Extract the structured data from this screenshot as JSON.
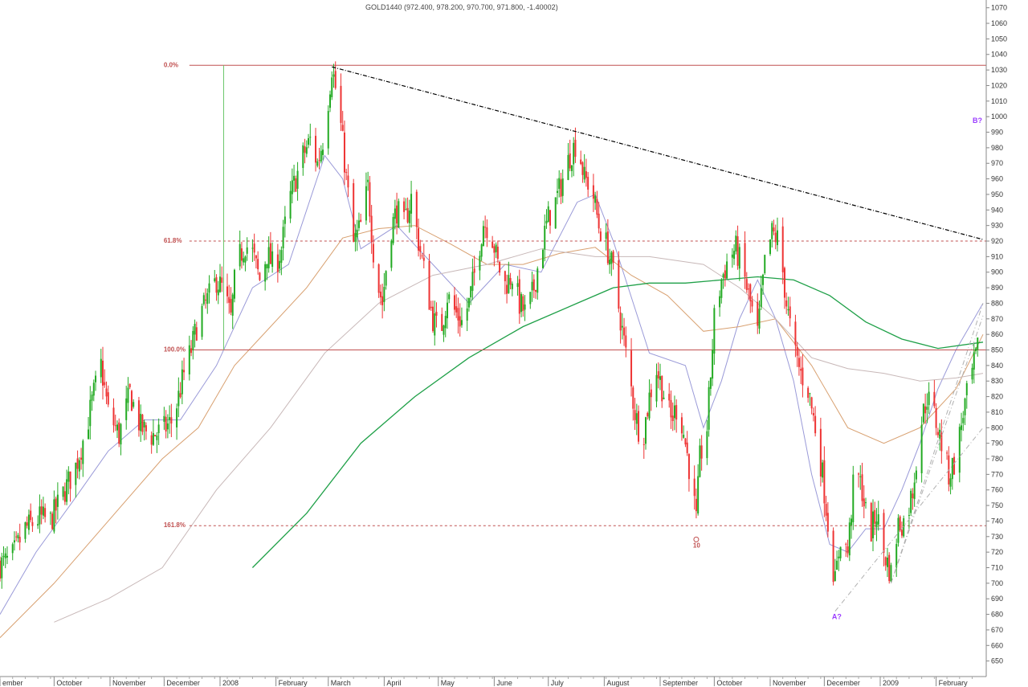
{
  "chart_data": {
    "type": "candlestick",
    "title": "GOLD1440 (972.400, 978.200, 970.700, 971.800, -1.40002)",
    "ylim": [
      640,
      1075
    ],
    "y_ticks": [
      650,
      660,
      670,
      680,
      690,
      700,
      710,
      720,
      730,
      740,
      750,
      760,
      770,
      780,
      790,
      800,
      810,
      820,
      830,
      840,
      850,
      860,
      870,
      880,
      890,
      900,
      910,
      920,
      930,
      940,
      950,
      960,
      970,
      980,
      990,
      1000,
      1010,
      1020,
      1030,
      1040,
      1050,
      1060,
      1070
    ],
    "x_ticks": [
      {
        "label": "ember",
        "day": 0
      },
      {
        "label": "October",
        "day": 30
      },
      {
        "label": "November",
        "day": 61
      },
      {
        "label": "December",
        "day": 91
      },
      {
        "label": "2008",
        "day": 122
      },
      {
        "label": "February",
        "day": 153
      },
      {
        "label": "March",
        "day": 182
      },
      {
        "label": "April",
        "day": 213
      },
      {
        "label": "May",
        "day": 243
      },
      {
        "label": "June",
        "day": 274
      },
      {
        "label": "July",
        "day": 304
      },
      {
        "label": "August",
        "day": 335
      },
      {
        "label": "September",
        "day": 366
      },
      {
        "label": "October",
        "day": 396
      },
      {
        "label": "November",
        "day": 427
      },
      {
        "label": "December",
        "day": 457
      },
      {
        "label": "2009",
        "day": 488
      },
      {
        "label": "February",
        "day": 519
      }
    ],
    "x_range_days": [
      0,
      545
    ],
    "price_anchors": [
      [
        0,
        712
      ],
      [
        6,
        715
      ],
      [
        14,
        735
      ],
      [
        22,
        742
      ],
      [
        28,
        740
      ],
      [
        36,
        760
      ],
      [
        42,
        775
      ],
      [
        48,
        800
      ],
      [
        52,
        822
      ],
      [
        56,
        840
      ],
      [
        60,
        810
      ],
      [
        66,
        795
      ],
      [
        72,
        822
      ],
      [
        78,
        800
      ],
      [
        84,
        795
      ],
      [
        90,
        798
      ],
      [
        96,
        805
      ],
      [
        102,
        835
      ],
      [
        106,
        850
      ],
      [
        110,
        870
      ],
      [
        115,
        882
      ],
      [
        120,
        895
      ],
      [
        124,
        888
      ],
      [
        128,
        870
      ],
      [
        131,
        905
      ],
      [
        136,
        918
      ],
      [
        140,
        912
      ],
      [
        144,
        895
      ],
      [
        148,
        912
      ],
      [
        152,
        902
      ],
      [
        156,
        915
      ],
      [
        160,
        945
      ],
      [
        164,
        960
      ],
      [
        168,
        975
      ],
      [
        172,
        985
      ],
      [
        176,
        970
      ],
      [
        180,
        990
      ],
      [
        184,
        1032
      ],
      [
        188,
        1005
      ],
      [
        192,
        960
      ],
      [
        196,
        918
      ],
      [
        200,
        930
      ],
      [
        204,
        955
      ],
      [
        208,
        900
      ],
      [
        212,
        880
      ],
      [
        216,
        925
      ],
      [
        220,
        940
      ],
      [
        224,
        930
      ],
      [
        228,
        948
      ],
      [
        232,
        920
      ],
      [
        236,
        895
      ],
      [
        240,
        870
      ],
      [
        244,
        860
      ],
      [
        248,
        885
      ],
      [
        252,
        875
      ],
      [
        256,
        868
      ],
      [
        260,
        880
      ],
      [
        264,
        905
      ],
      [
        268,
        932
      ],
      [
        272,
        928
      ],
      [
        276,
        905
      ],
      [
        280,
        892
      ],
      [
        284,
        898
      ],
      [
        288,
        880
      ],
      [
        292,
        872
      ],
      [
        296,
        890
      ],
      [
        300,
        915
      ],
      [
        304,
        935
      ],
      [
        308,
        945
      ],
      [
        312,
        960
      ],
      [
        316,
        975
      ],
      [
        320,
        985
      ],
      [
        324,
        960
      ],
      [
        328,
        955
      ],
      [
        332,
        930
      ],
      [
        336,
        918
      ],
      [
        340,
        900
      ],
      [
        344,
        870
      ],
      [
        348,
        840
      ],
      [
        352,
        810
      ],
      [
        356,
        790
      ],
      [
        360,
        820
      ],
      [
        364,
        838
      ],
      [
        368,
        822
      ],
      [
        372,
        805
      ],
      [
        376,
        815
      ],
      [
        380,
        790
      ],
      [
        384,
        760
      ],
      [
        386,
        740
      ],
      [
        388,
        780
      ],
      [
        392,
        800
      ],
      [
        396,
        870
      ],
      [
        400,
        895
      ],
      [
        404,
        910
      ],
      [
        408,
        915
      ],
      [
        412,
        900
      ],
      [
        416,
        880
      ],
      [
        420,
        860
      ],
      [
        424,
        905
      ],
      [
        428,
        925
      ],
      [
        432,
        920
      ],
      [
        436,
        880
      ],
      [
        440,
        850
      ],
      [
        444,
        835
      ],
      [
        448,
        825
      ],
      [
        452,
        800
      ],
      [
        456,
        770
      ],
      [
        460,
        728
      ],
      [
        463,
        700
      ],
      [
        466,
        730
      ],
      [
        470,
        720
      ],
      [
        474,
        775
      ],
      [
        478,
        760
      ],
      [
        482,
        730
      ],
      [
        486,
        745
      ],
      [
        490,
        720
      ],
      [
        494,
        706
      ],
      [
        498,
        738
      ],
      [
        502,
        740
      ],
      [
        506,
        760
      ],
      [
        510,
        800
      ],
      [
        514,
        820
      ],
      [
        518,
        808
      ],
      [
        522,
        790
      ],
      [
        526,
        770
      ],
      [
        530,
        780
      ],
      [
        534,
        810
      ],
      [
        538,
        830
      ],
      [
        542,
        850
      ]
    ],
    "fib_levels": [
      {
        "label": "0.0%",
        "price": 1033,
        "style": "solid"
      },
      {
        "label": "61.8%",
        "price": 920,
        "style": "dashed"
      },
      {
        "label": "100.0%",
        "price": 850,
        "style": "solid"
      },
      {
        "label": "161.8%",
        "price": 737,
        "style": "dashed"
      }
    ],
    "trendline": {
      "from": [
        184,
        1032
      ],
      "to": [
        545,
        921
      ]
    },
    "annotations": [
      {
        "label": "10",
        "day": 386,
        "price": 723
      },
      {
        "label": "A?",
        "day": 463,
        "price": 677
      },
      {
        "label": "B?",
        "day": 541,
        "price": 996
      }
    ],
    "moving_averages": [
      {
        "name": "ma20",
        "color": "#9a9ad8",
        "points": [
          [
            0,
            680
          ],
          [
            20,
            720
          ],
          [
            40,
            752
          ],
          [
            60,
            785
          ],
          [
            80,
            805
          ],
          [
            100,
            805
          ],
          [
            120,
            840
          ],
          [
            140,
            890
          ],
          [
            160,
            905
          ],
          [
            180,
            975
          ],
          [
            190,
            960
          ],
          [
            200,
            915
          ],
          [
            220,
            930
          ],
          [
            240,
            905
          ],
          [
            260,
            880
          ],
          [
            280,
            905
          ],
          [
            300,
            900
          ],
          [
            320,
            945
          ],
          [
            330,
            950
          ],
          [
            340,
            920
          ],
          [
            360,
            848
          ],
          [
            380,
            840
          ],
          [
            390,
            800
          ],
          [
            400,
            830
          ],
          [
            410,
            870
          ],
          [
            420,
            895
          ],
          [
            430,
            870
          ],
          [
            440,
            830
          ],
          [
            450,
            770
          ],
          [
            460,
            725
          ],
          [
            470,
            720
          ],
          [
            480,
            735
          ],
          [
            490,
            735
          ],
          [
            500,
            760
          ],
          [
            510,
            790
          ],
          [
            520,
            825
          ],
          [
            530,
            850
          ],
          [
            540,
            870
          ],
          [
            545,
            880
          ]
        ]
      },
      {
        "name": "ma50",
        "color": "#d8a070",
        "points": [
          [
            0,
            665
          ],
          [
            30,
            700
          ],
          [
            60,
            740
          ],
          [
            90,
            780
          ],
          [
            110,
            800
          ],
          [
            130,
            840
          ],
          [
            150,
            865
          ],
          [
            170,
            890
          ],
          [
            190,
            922
          ],
          [
            210,
            928
          ],
          [
            230,
            930
          ],
          [
            250,
            918
          ],
          [
            270,
            905
          ],
          [
            290,
            905
          ],
          [
            310,
            912
          ],
          [
            330,
            916
          ],
          [
            350,
            898
          ],
          [
            370,
            885
          ],
          [
            390,
            862
          ],
          [
            410,
            865
          ],
          [
            430,
            870
          ],
          [
            450,
            840
          ],
          [
            470,
            800
          ],
          [
            490,
            790
          ],
          [
            510,
            800
          ],
          [
            530,
            825
          ],
          [
            545,
            860
          ]
        ]
      },
      {
        "name": "ma100",
        "color": "#c8b8b8",
        "points": [
          [
            30,
            675
          ],
          [
            60,
            690
          ],
          [
            90,
            710
          ],
          [
            120,
            760
          ],
          [
            150,
            800
          ],
          [
            180,
            848
          ],
          [
            210,
            880
          ],
          [
            240,
            898
          ],
          [
            270,
            905
          ],
          [
            300,
            915
          ],
          [
            330,
            910
          ],
          [
            360,
            910
          ],
          [
            390,
            905
          ],
          [
            410,
            890
          ],
          [
            430,
            870
          ],
          [
            450,
            845
          ],
          [
            470,
            838
          ],
          [
            490,
            835
          ],
          [
            510,
            830
          ],
          [
            530,
            832
          ],
          [
            545,
            835
          ]
        ]
      },
      {
        "name": "ma200",
        "color": "#1fa048",
        "points": [
          [
            140,
            710
          ],
          [
            170,
            745
          ],
          [
            200,
            790
          ],
          [
            230,
            820
          ],
          [
            260,
            845
          ],
          [
            290,
            865
          ],
          [
            320,
            880
          ],
          [
            340,
            890
          ],
          [
            360,
            893
          ],
          [
            380,
            893
          ],
          [
            400,
            895
          ],
          [
            420,
            897
          ],
          [
            440,
            895
          ],
          [
            460,
            885
          ],
          [
            480,
            868
          ],
          [
            500,
            857
          ],
          [
            520,
            851
          ],
          [
            545,
            855
          ]
        ]
      }
    ],
    "gray_trendlines": [
      {
        "from": [
          494,
          700
        ],
        "to": [
          545,
          880
        ]
      },
      {
        "from": [
          463,
          682
        ],
        "to": [
          545,
          800
        ]
      },
      {
        "from": [
          494,
          700
        ],
        "to": [
          545,
          872
        ]
      }
    ],
    "colors": {
      "up": "#22aa22",
      "down": "#ee3333",
      "fib": "#c05050",
      "trend": "#000000",
      "grid": "#dddddd"
    }
  }
}
